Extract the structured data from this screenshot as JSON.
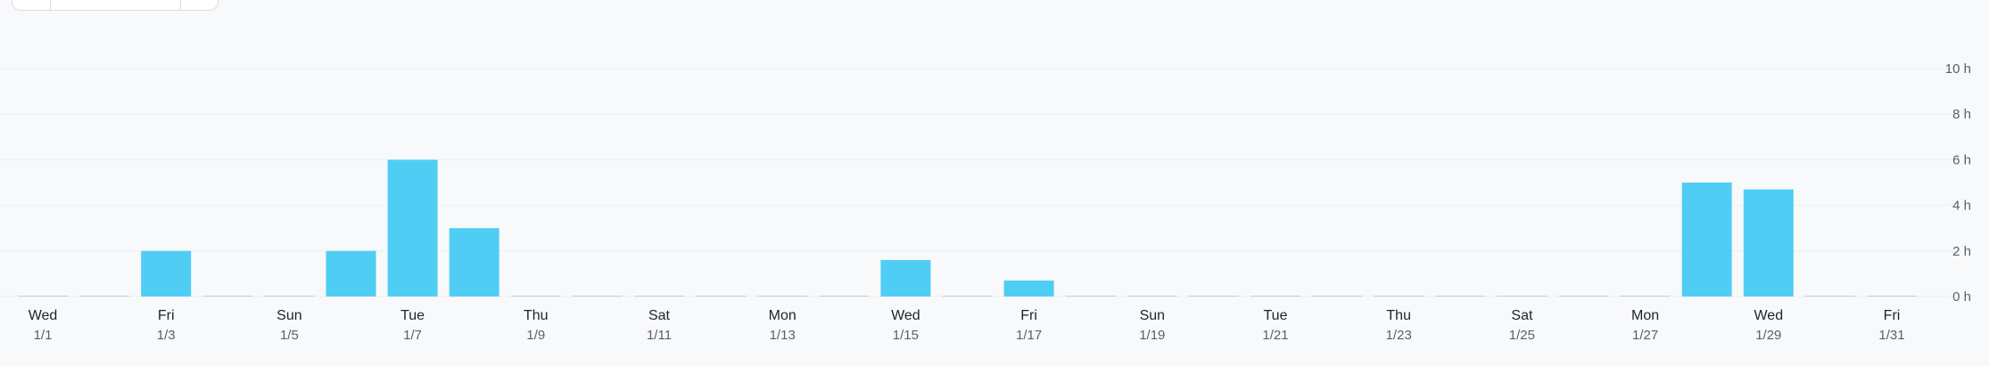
{
  "colors": {
    "bar": "#50cdf5",
    "zero_bar": "#c9ccd2",
    "grid": "#eceef2",
    "background": "#f8f9fb"
  },
  "chart_data": {
    "type": "bar",
    "title": "",
    "xlabel": "",
    "ylabel": "",
    "ylim": [
      0,
      10
    ],
    "y_ticks": [
      {
        "value": 0,
        "label": "0 h"
      },
      {
        "value": 2,
        "label": "2 h"
      },
      {
        "value": 4,
        "label": "4 h"
      },
      {
        "value": 6,
        "label": "6 h"
      },
      {
        "value": 8,
        "label": "8 h"
      },
      {
        "value": 10,
        "label": "10 h"
      }
    ],
    "y_axis_position": "right",
    "grid": true,
    "legend": "none",
    "categories": [
      "1/1",
      "1/2",
      "1/3",
      "1/4",
      "1/5",
      "1/6",
      "1/7",
      "1/8",
      "1/9",
      "1/10",
      "1/11",
      "1/12",
      "1/13",
      "1/14",
      "1/15",
      "1/16",
      "1/17",
      "1/18",
      "1/19",
      "1/20",
      "1/21",
      "1/22",
      "1/23",
      "1/24",
      "1/25",
      "1/26",
      "1/27",
      "1/28",
      "1/29",
      "1/30",
      "1/31"
    ],
    "values": [
      0,
      0,
      2.0,
      0,
      0,
      2.0,
      6.0,
      3.0,
      0,
      0,
      0,
      0,
      0,
      0,
      1.6,
      0,
      0.7,
      0,
      0,
      0,
      0,
      0,
      0,
      0,
      0,
      0,
      0,
      5.0,
      4.7,
      0,
      0
    ],
    "x_ticks": [
      {
        "day": "Wed",
        "date": "1/1"
      },
      {
        "day": "Fri",
        "date": "1/3"
      },
      {
        "day": "Sun",
        "date": "1/5"
      },
      {
        "day": "Tue",
        "date": "1/7"
      },
      {
        "day": "Thu",
        "date": "1/9"
      },
      {
        "day": "Sat",
        "date": "1/11"
      },
      {
        "day": "Mon",
        "date": "1/13"
      },
      {
        "day": "Wed",
        "date": "1/15"
      },
      {
        "day": "Fri",
        "date": "1/17"
      },
      {
        "day": "Sun",
        "date": "1/19"
      },
      {
        "day": "Tue",
        "date": "1/21"
      },
      {
        "day": "Thu",
        "date": "1/23"
      },
      {
        "day": "Sat",
        "date": "1/25"
      },
      {
        "day": "Mon",
        "date": "1/27"
      },
      {
        "day": "Wed",
        "date": "1/29"
      },
      {
        "day": "Fri",
        "date": "1/31"
      }
    ]
  }
}
